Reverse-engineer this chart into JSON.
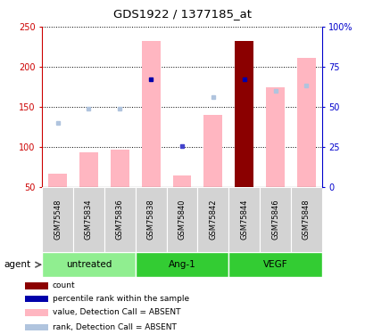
{
  "title": "GDS1922 / 1377185_at",
  "samples": [
    "GSM75548",
    "GSM75834",
    "GSM75836",
    "GSM75838",
    "GSM75840",
    "GSM75842",
    "GSM75844",
    "GSM75846",
    "GSM75848"
  ],
  "bar_values": [
    67,
    93,
    97,
    232,
    65,
    140,
    232,
    175,
    211
  ],
  "rank_values": [
    130,
    148,
    148,
    185,
    101,
    162,
    185,
    170,
    177
  ],
  "bar_colors": [
    "#FFB6C1",
    "#FFB6C1",
    "#FFB6C1",
    "#FFB6C1",
    "#FFB6C1",
    "#FFB6C1",
    "#8B0000",
    "#FFB6C1",
    "#FFB6C1"
  ],
  "rank_colors": [
    "#B0C4DE",
    "#B0C4DE",
    "#B0C4DE",
    "#0000AA",
    "#4444CC",
    "#B0C4DE",
    "#0000AA",
    "#B0C4DE",
    "#B0C4DE"
  ],
  "ylim_left": [
    50,
    250
  ],
  "ylim_right": [
    0,
    100
  ],
  "yticks_left": [
    50,
    100,
    150,
    200,
    250
  ],
  "yticks_right": [
    0,
    25,
    50,
    75,
    100
  ],
  "yticklabels_right": [
    "0",
    "25",
    "50",
    "75",
    "100%"
  ],
  "left_color": "#CC0000",
  "right_color": "#0000CC",
  "groups_info": [
    {
      "name": "untreated",
      "start": 0,
      "end": 2,
      "color": "#90EE90"
    },
    {
      "name": "Ang-1",
      "start": 3,
      "end": 5,
      "color": "#33CC33"
    },
    {
      "name": "VEGF",
      "start": 6,
      "end": 8,
      "color": "#33CC33"
    }
  ],
  "legend_items": [
    {
      "color": "#8B0000",
      "label": "count"
    },
    {
      "color": "#0000AA",
      "label": "percentile rank within the sample"
    },
    {
      "color": "#FFB6C1",
      "label": "value, Detection Call = ABSENT"
    },
    {
      "color": "#B0C4DE",
      "label": "rank, Detection Call = ABSENT"
    }
  ]
}
